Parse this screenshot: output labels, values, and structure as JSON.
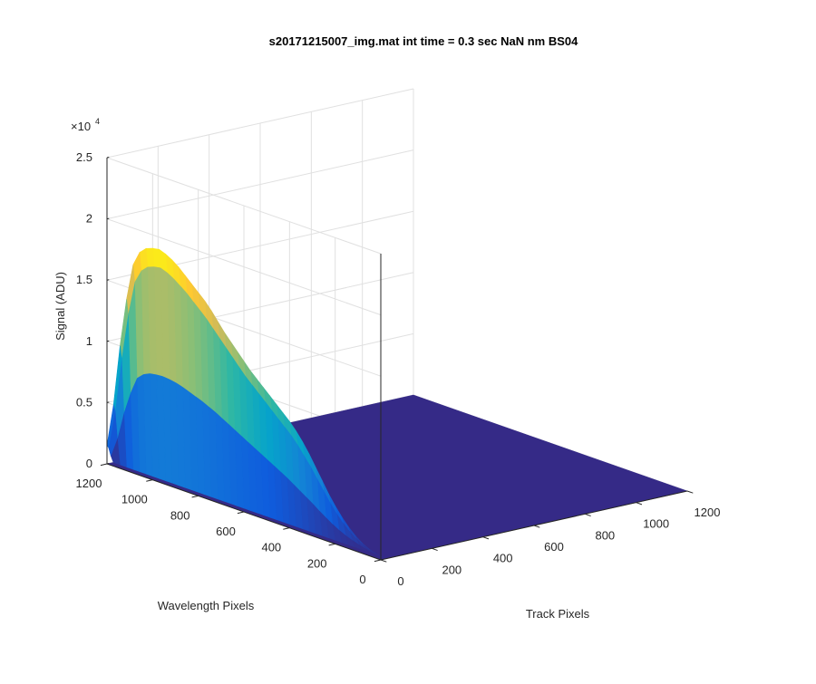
{
  "chart_data": {
    "type": "surface3d",
    "title": "s20171215007_img.mat int time = 0.3 sec  NaN nm BS04",
    "xlabel": "Track Pixels",
    "ylabel": "Wavelength Pixels",
    "zlabel": "Signal (ADU)",
    "z_exponent_label": "×10",
    "z_exponent_power": "4",
    "xlim": [
      0,
      1200
    ],
    "ylim": [
      0,
      1200
    ],
    "zlim": [
      0,
      25000
    ],
    "x_ticks": [
      "0",
      "200",
      "400",
      "600",
      "800",
      "1000",
      "1200"
    ],
    "y_ticks": [
      "0",
      "200",
      "400",
      "600",
      "800",
      "1000",
      "1200"
    ],
    "z_ticks": [
      "0",
      "0.5",
      "1",
      "1.5",
      "2",
      "2.5"
    ],
    "grid": true,
    "colormap": "parula",
    "colors": [
      "#352a87",
      "#0f5cdd",
      "#1481d6",
      "#06a4ca",
      "#2eb7a4",
      "#87bf77",
      "#d1bb59",
      "#fec832",
      "#f9fb0e"
    ],
    "peak_signal": 19000,
    "peak_location": {
      "track_pixels": 0,
      "wavelength_pixels": 1180
    },
    "active_track_range": [
      0,
      25
    ],
    "profiles": [
      {
        "track_pixels": 0,
        "signal": [
          300,
          400,
          600,
          900,
          1300,
          1800,
          2400,
          3100,
          3900,
          4800,
          5700,
          6600,
          7400,
          8100,
          8700,
          9200,
          9700,
          10200,
          10700,
          11200,
          11700,
          12300,
          12900,
          13500,
          14100,
          14800,
          15500,
          16100,
          16600,
          17100,
          17600,
          18100,
          18500,
          18800,
          19000,
          18900,
          18700,
          18200,
          17000,
          14000,
          10000,
          5000,
          1500
        ]
      },
      {
        "track_pixels": 6,
        "signal": [
          200,
          300,
          450,
          700,
          1000,
          1400,
          1900,
          2500,
          3200,
          4000,
          4800,
          5600,
          6300,
          7000,
          7600,
          8100,
          8600,
          9100,
          9600,
          10100,
          10600,
          11100,
          11700,
          12300,
          12900,
          13500,
          14100,
          14700,
          15200,
          15700,
          16200,
          16600,
          17000,
          17300,
          17500,
          17400,
          17200,
          16700,
          15600,
          12800,
          9000,
          4500,
          1300
        ]
      },
      {
        "track_pixels": 15,
        "signal": [
          100,
          150,
          220,
          330,
          480,
          650,
          850,
          1100,
          1400,
          1750,
          2100,
          2500,
          2850,
          3200,
          3550,
          3900,
          4200,
          4500,
          4800,
          5100,
          5400,
          5700,
          6000,
          6300,
          6600,
          6900,
          7200,
          7450,
          7700,
          7900,
          8100,
          8300,
          8450,
          8550,
          8600,
          8550,
          8450,
          8200,
          7700,
          6300,
          4500,
          2200,
          600
        ]
      },
      {
        "track_pixels": 25,
        "signal": [
          0,
          0,
          0,
          0,
          0,
          0,
          0,
          0,
          0,
          0,
          0,
          0,
          0,
          0,
          0,
          0,
          0,
          0,
          0,
          0,
          0,
          0,
          0,
          0,
          0,
          0,
          0,
          0,
          0,
          0,
          0,
          0,
          0,
          0,
          0,
          0,
          0,
          0,
          0,
          0,
          0,
          0,
          0
        ]
      }
    ],
    "baseline_signal": 0
  }
}
